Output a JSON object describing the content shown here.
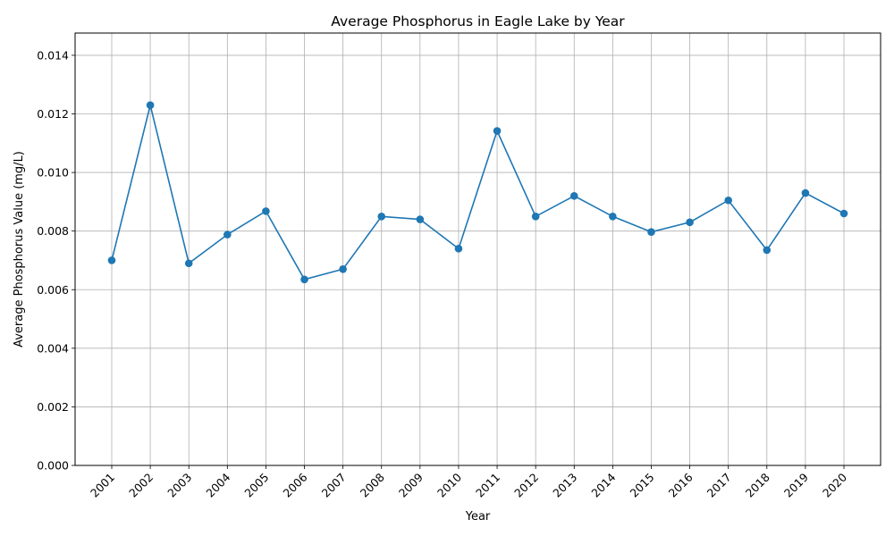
{
  "chart_data": {
    "type": "line",
    "title": "Average Phosphorus in Eagle Lake by Year",
    "xlabel": "Year",
    "ylabel": "Average Phosphorus Value (mg/L)",
    "categories": [
      "2001",
      "2002",
      "2003",
      "2004",
      "2005",
      "2006",
      "2007",
      "2008",
      "2009",
      "2010",
      "2011",
      "2012",
      "2013",
      "2014",
      "2015",
      "2016",
      "2017",
      "2018",
      "2019",
      "2020"
    ],
    "series": [
      {
        "values": [
          0.007,
          0.0123,
          0.0069,
          0.00788,
          0.00868,
          0.00635,
          0.0067,
          0.0085,
          0.0084,
          0.0074,
          0.01142,
          0.0085,
          0.0092,
          0.0085,
          0.00797,
          0.0083,
          0.00905,
          0.00735,
          0.0093,
          0.0086
        ],
        "color": "#1f77b4",
        "marker": "circle"
      }
    ],
    "ylim": [
      0,
      0.01476
    ],
    "yticks": [
      "0.000",
      "0.002",
      "0.004",
      "0.006",
      "0.008",
      "0.010",
      "0.012",
      "0.014"
    ],
    "grid": true,
    "legend": "none"
  }
}
